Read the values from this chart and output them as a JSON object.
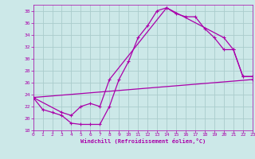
{
  "xlabel": "Windchill (Refroidissement éolien,°C)",
  "bg_color": "#cce8e8",
  "grid_color": "#aacccc",
  "line_color": "#aa00aa",
  "ylim": [
    18,
    39
  ],
  "xlim": [
    0,
    23
  ],
  "yticks": [
    18,
    20,
    22,
    24,
    26,
    28,
    30,
    32,
    34,
    36,
    38
  ],
  "xticks": [
    0,
    1,
    2,
    3,
    4,
    5,
    6,
    7,
    8,
    9,
    10,
    11,
    12,
    13,
    14,
    15,
    16,
    17,
    18,
    19,
    20,
    21,
    22,
    23
  ],
  "curve1_x": [
    0,
    1,
    2,
    3,
    4,
    5,
    6,
    7,
    8,
    9,
    10,
    11,
    12,
    13,
    14,
    15,
    16,
    17,
    18,
    19,
    20,
    21,
    22,
    23
  ],
  "curve1_y": [
    23.5,
    21.5,
    21.0,
    20.5,
    19.2,
    19.0,
    19.0,
    19.0,
    22.0,
    26.5,
    29.5,
    33.5,
    35.5,
    38.0,
    38.5,
    37.5,
    37.0,
    37.0,
    35.0,
    33.5,
    31.5,
    31.5,
    27.0,
    27.0
  ],
  "curve2_x": [
    0,
    3,
    4,
    5,
    6,
    7,
    8,
    14,
    20,
    21,
    22,
    23
  ],
  "curve2_y": [
    23.5,
    21.0,
    20.5,
    22.0,
    22.5,
    22.0,
    26.5,
    38.5,
    33.5,
    31.5,
    27.0,
    27.0
  ],
  "curve3_x": [
    0,
    23
  ],
  "curve3_y": [
    23.5,
    26.5
  ]
}
